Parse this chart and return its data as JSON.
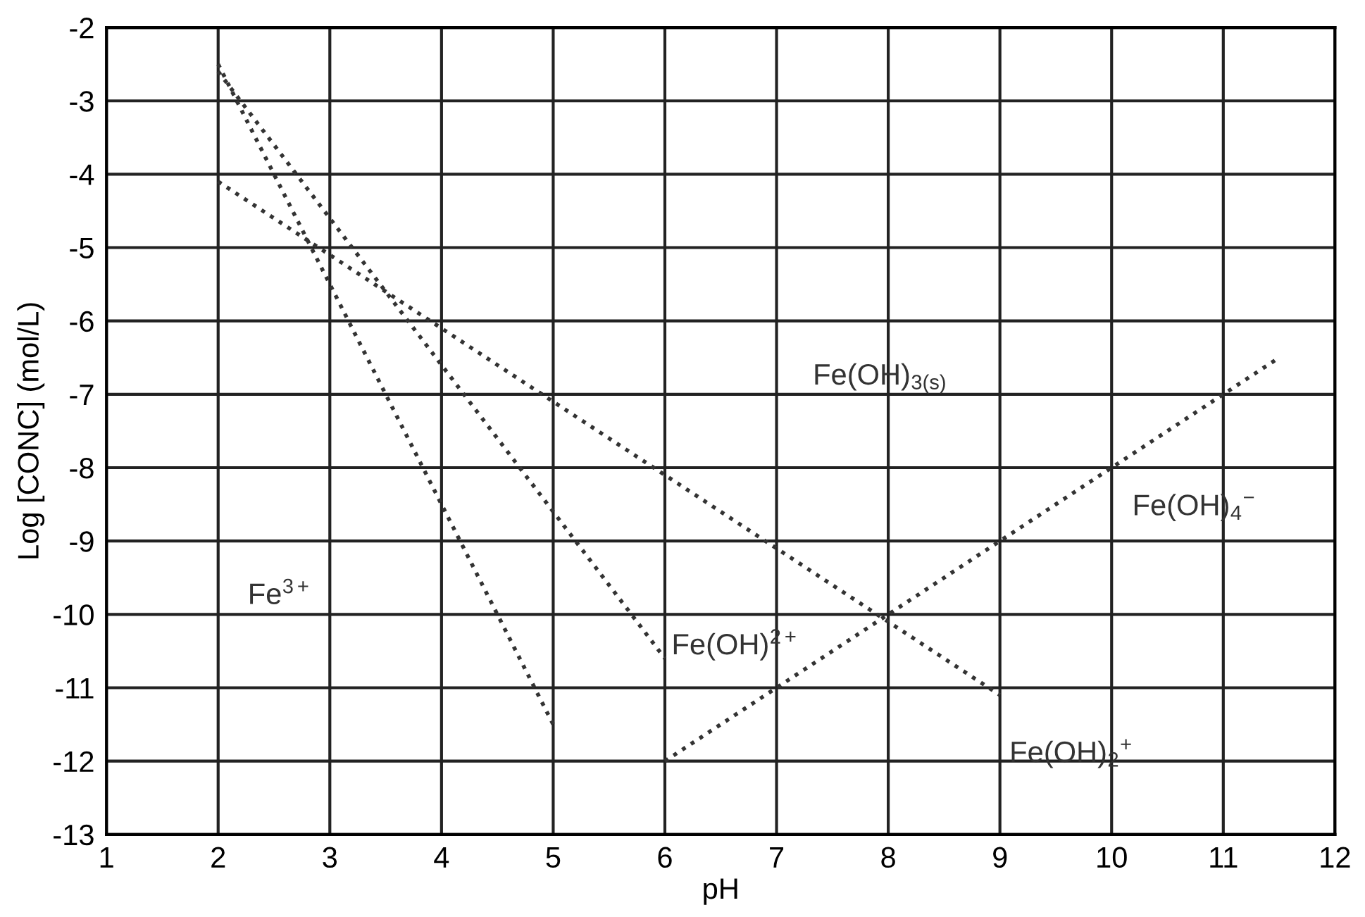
{
  "chart_data": {
    "type": "line",
    "xlabel": "pH",
    "ylabel": "Log [CONC] (mol/L)",
    "xlim": [
      1,
      12
    ],
    "ylim": [
      -13,
      -2
    ],
    "xticks": [
      1,
      2,
      3,
      4,
      5,
      6,
      7,
      8,
      9,
      10,
      11,
      12
    ],
    "yticks": [
      -13,
      -12,
      -11,
      -10,
      -9,
      -8,
      -7,
      -6,
      -5,
      -4,
      -3,
      -2
    ],
    "grid": true,
    "line_style": "dotted",
    "marker": "none",
    "series": [
      {
        "color": "#333333",
        "x": [
          2,
          5
        ],
        "values": [
          -2.5,
          -11.5
        ]
      },
      {
        "color": "#333333",
        "x": [
          2,
          6
        ],
        "values": [
          -2.6,
          -10.6
        ]
      },
      {
        "color": "#333333",
        "x": [
          2,
          9
        ],
        "values": [
          -4.1,
          -11.1
        ]
      },
      {
        "color": "#333333",
        "x": [
          6,
          11.5
        ],
        "values": [
          -12,
          -6.5
        ]
      }
    ],
    "annotations": [
      "Fe$^{3+}$",
      "Fe(OH)$^{2+}$",
      "Fe(OH)$_{2}$$^{+}$",
      "Fe(OH)$_{4}$$^{−}$",
      "Fe(OH)$_{3(s)}$"
    ]
  }
}
